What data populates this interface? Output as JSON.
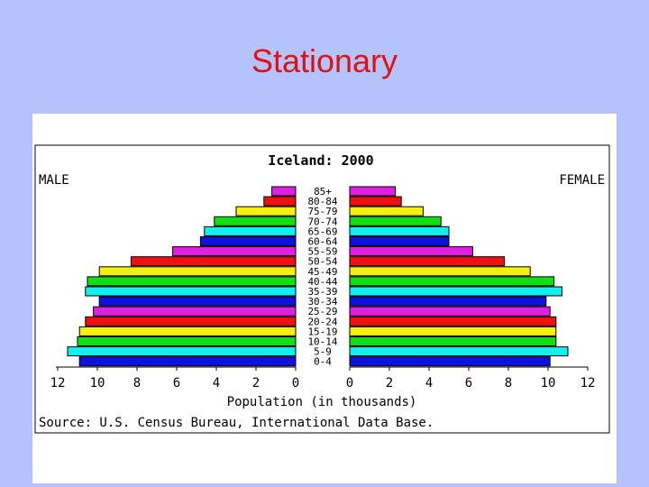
{
  "slide": {
    "title": "Stationary"
  },
  "chart_data": {
    "type": "bar",
    "orientation": "horizontal",
    "layout": "population-pyramid",
    "title": "Iceland: 2000",
    "left_label": "MALE",
    "right_label": "FEMALE",
    "xlabel": "Population (in thousands)",
    "source": "Source: U.S. Census Bureau, International Data Base.",
    "xlim": [
      0,
      12
    ],
    "ticks": [
      "12",
      "10",
      "8",
      "6",
      "4",
      "2",
      "0"
    ],
    "ticks_right": [
      "0",
      "2",
      "4",
      "6",
      "8",
      "10",
      "12"
    ],
    "tick_values": [
      12,
      10,
      8,
      6,
      4,
      2,
      0
    ],
    "categories": [
      "85+",
      "80-84",
      "75-79",
      "70-74",
      "65-69",
      "60-64",
      "55-59",
      "50-54",
      "45-49",
      "40-44",
      "35-39",
      "30-34",
      "25-29",
      "20-24",
      "15-19",
      "10-14",
      "5-9",
      "0-4"
    ],
    "series": [
      {
        "name": "MALE",
        "values": [
          1.2,
          1.6,
          3.0,
          4.1,
          4.6,
          4.8,
          6.2,
          8.3,
          9.9,
          10.5,
          10.6,
          9.9,
          10.2,
          10.6,
          10.9,
          11.0,
          11.5,
          10.9
        ]
      },
      {
        "name": "FEMALE",
        "values": [
          2.3,
          2.6,
          3.7,
          4.6,
          5.0,
          5.0,
          6.2,
          7.8,
          9.1,
          10.3,
          10.7,
          9.9,
          10.1,
          10.4,
          10.4,
          10.4,
          11.0,
          10.1
        ]
      }
    ],
    "bar_colors": [
      "#e020e0",
      "#f01010",
      "#f5f010",
      "#10e010",
      "#10f0f0",
      "#1010e0",
      "#e020e0",
      "#f01010",
      "#f5f010",
      "#10e010",
      "#10f0f0",
      "#1010e0",
      "#e020e0",
      "#f01010",
      "#f5f010",
      "#10e010",
      "#10f0f0",
      "#1010e0"
    ],
    "grid": false
  }
}
